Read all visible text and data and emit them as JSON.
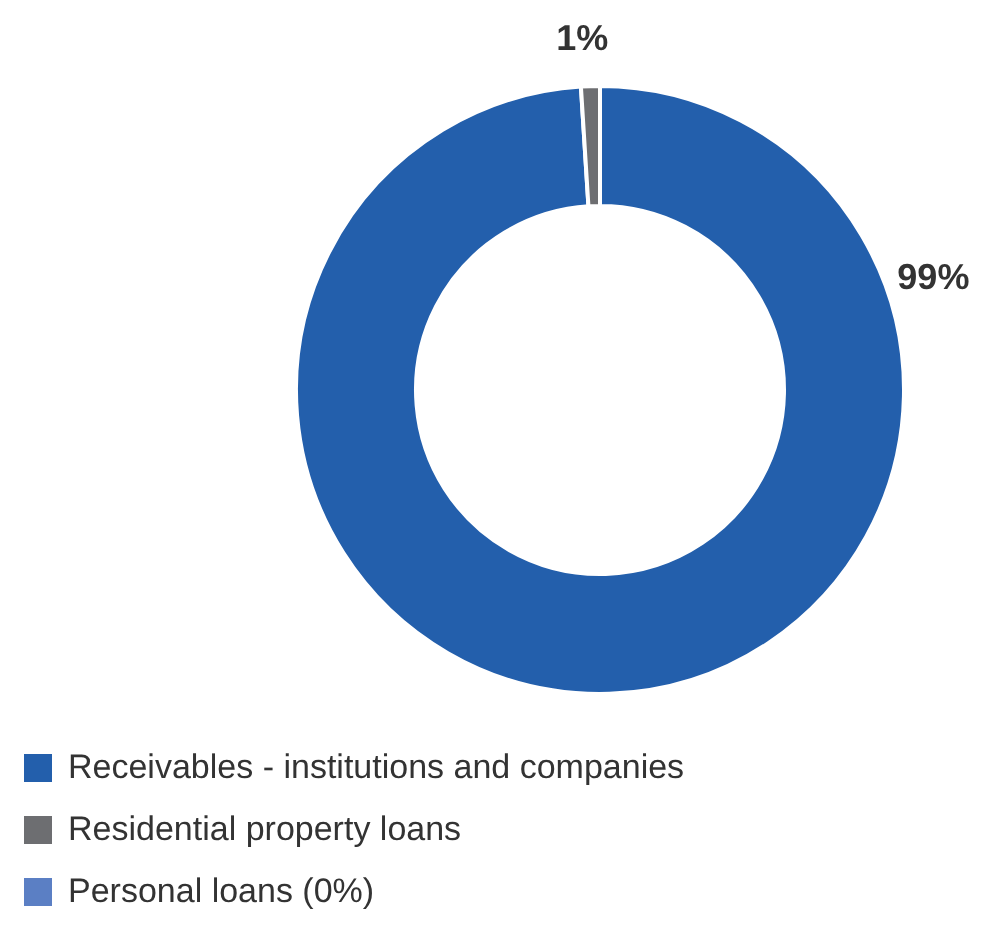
{
  "chart_data": {
    "type": "donut",
    "categories": [
      "Receivables - institutions and companies",
      "Residential property loans",
      "Personal loans (0%)"
    ],
    "values": [
      99,
      1,
      0
    ],
    "colors": [
      "#235fac",
      "#6d6e71",
      "#5b7fc4"
    ],
    "value_labels": [
      "99%",
      "1%",
      null
    ],
    "legend": "bottom"
  }
}
